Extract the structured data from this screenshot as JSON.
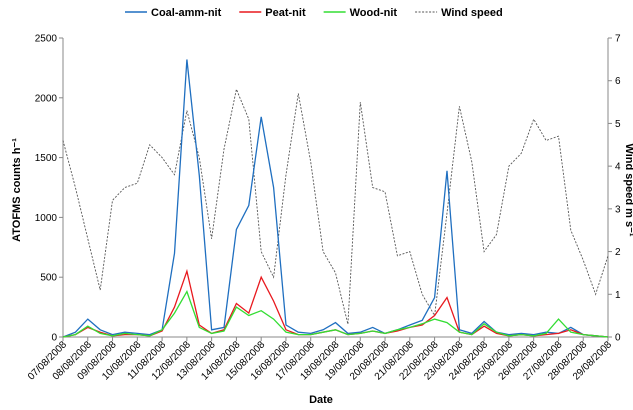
{
  "chart_data": {
    "type": "line",
    "x_label": "Date",
    "y_label": "ATOFMS counts h⁻¹",
    "y2_label": "Wind speed m s⁻¹",
    "x": [
      0,
      0.5,
      1,
      1.5,
      2,
      2.5,
      3,
      3.5,
      4,
      4.5,
      5,
      5.5,
      6,
      6.5,
      7,
      7.5,
      8,
      8.5,
      9,
      9.5,
      10,
      10.5,
      11,
      11.5,
      12,
      12.5,
      13,
      13.5,
      14,
      14.5,
      15,
      15.5,
      16,
      16.5,
      17,
      17.5,
      18,
      18.5,
      19,
      19.5,
      20,
      20.5,
      21,
      21.5,
      22
    ],
    "xlim": [
      0,
      22
    ],
    "xticks": [
      {
        "value": 0,
        "label": "07/08/2008"
      },
      {
        "value": 1,
        "label": "08/08/2008"
      },
      {
        "value": 2,
        "label": "09/08/2008"
      },
      {
        "value": 3,
        "label": "10/08/2008"
      },
      {
        "value": 4,
        "label": "11/08/2008"
      },
      {
        "value": 5,
        "label": "12/08/2008"
      },
      {
        "value": 6,
        "label": "13/08/2008"
      },
      {
        "value": 7,
        "label": "14/08/2008"
      },
      {
        "value": 8,
        "label": "15/08/2008"
      },
      {
        "value": 9,
        "label": "16/08/2008"
      },
      {
        "value": 10,
        "label": "17/08/2008"
      },
      {
        "value": 11,
        "label": "18/08/2008"
      },
      {
        "value": 12,
        "label": "19/08/2008"
      },
      {
        "value": 13,
        "label": "20/08/2008"
      },
      {
        "value": 14,
        "label": "21/08/2008"
      },
      {
        "value": 15,
        "label": "22/08/2008"
      },
      {
        "value": 16,
        "label": "23/08/2008"
      },
      {
        "value": 17,
        "label": "24/08/2008"
      },
      {
        "value": 18,
        "label": "25/08/2008"
      },
      {
        "value": 19,
        "label": "26/08/2008"
      },
      {
        "value": 20,
        "label": "27/08/2008"
      },
      {
        "value": 21,
        "label": "28/08/2008"
      },
      {
        "value": 22,
        "label": "29/08/2008"
      }
    ],
    "ylim": [
      0,
      2500
    ],
    "yticks": [
      0,
      500,
      1000,
      1500,
      2000,
      2500
    ],
    "y2lim": [
      0,
      7
    ],
    "y2ticks": [
      0,
      1,
      2,
      3,
      4,
      5,
      6,
      7
    ],
    "series": [
      {
        "name": "Coal-amm-nit",
        "color": "#1f6fc0",
        "values": [
          0,
          40,
          150,
          60,
          20,
          40,
          30,
          20,
          60,
          700,
          2320,
          1350,
          60,
          80,
          900,
          1100,
          1840,
          1250,
          100,
          40,
          30,
          60,
          120,
          30,
          40,
          80,
          30,
          60,
          100,
          140,
          330,
          1390,
          60,
          30,
          130,
          40,
          20,
          30,
          20,
          40,
          30,
          80,
          20,
          10,
          0
        ]
      },
      {
        "name": "Peat-nit",
        "color": "#e8191e",
        "values": [
          0,
          20,
          80,
          40,
          10,
          20,
          20,
          10,
          50,
          250,
          550,
          100,
          30,
          60,
          280,
          200,
          500,
          300,
          60,
          20,
          20,
          40,
          60,
          20,
          30,
          50,
          30,
          50,
          80,
          100,
          180,
          330,
          40,
          20,
          90,
          30,
          10,
          20,
          10,
          20,
          30,
          60,
          20,
          10,
          0
        ]
      },
      {
        "name": "Wood-nit",
        "color": "#33dd33",
        "values": [
          0,
          20,
          90,
          30,
          10,
          30,
          20,
          10,
          60,
          200,
          380,
          80,
          30,
          50,
          250,
          180,
          220,
          150,
          40,
          20,
          20,
          40,
          60,
          20,
          30,
          50,
          30,
          60,
          80,
          110,
          150,
          120,
          40,
          20,
          110,
          40,
          10,
          20,
          10,
          30,
          150,
          40,
          20,
          10,
          0
        ]
      },
      {
        "name": "Wind speed",
        "color": "#555555",
        "axis": "y2",
        "dashed": true,
        "values": [
          4.6,
          3.5,
          2.3,
          1.1,
          3.2,
          3.5,
          3.6,
          4.5,
          4.2,
          3.8,
          5.3,
          4.2,
          2.3,
          4.4,
          5.8,
          5.1,
          2.0,
          1.4,
          3.8,
          5.7,
          4.1,
          2.0,
          1.5,
          0.3,
          5.5,
          3.5,
          3.4,
          1.9,
          2.0,
          1.0,
          0.5,
          2.9,
          5.4,
          4.1,
          2.0,
          2.4,
          4.0,
          4.3,
          5.1,
          4.6,
          4.7,
          2.5,
          1.8,
          1.0,
          1.9
        ]
      }
    ]
  }
}
